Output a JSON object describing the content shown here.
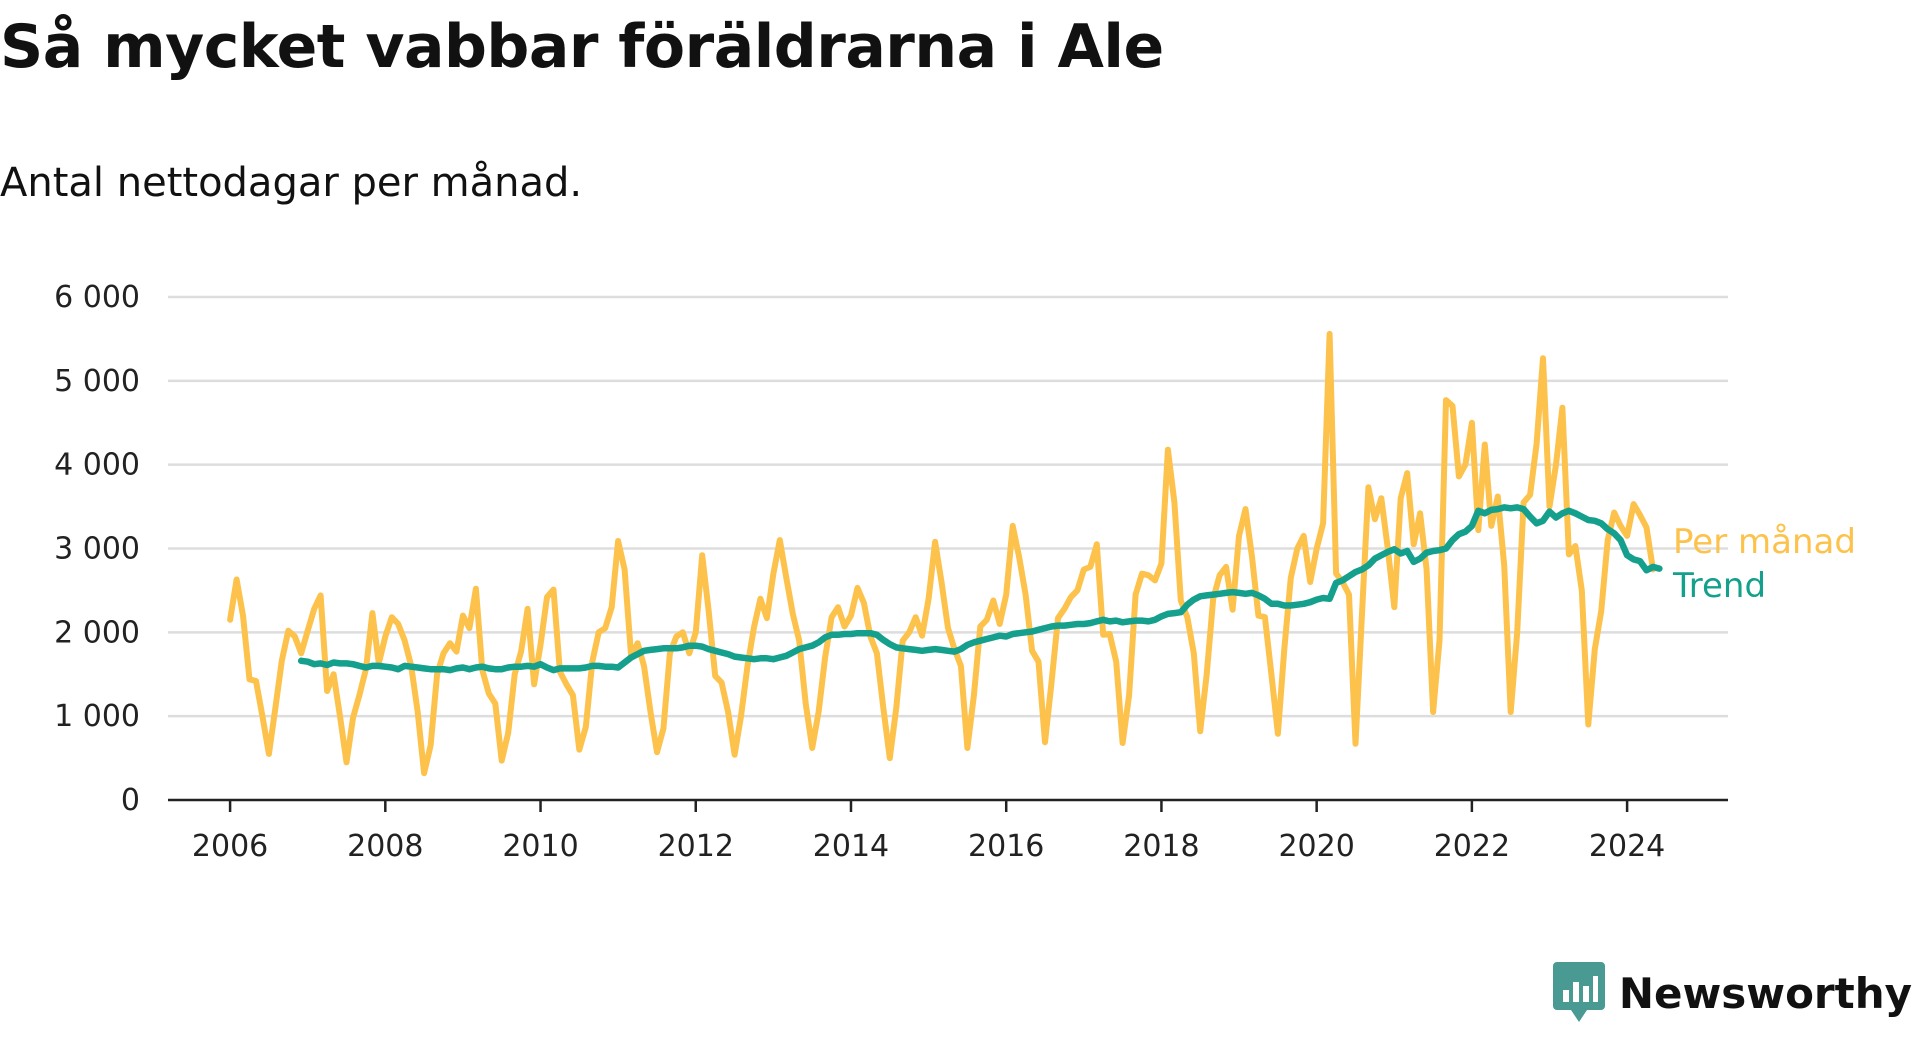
{
  "header": {
    "title": "Så mycket vabbar föräldrarna i Ale",
    "subtitle": "Antal nettodagar per månad."
  },
  "brand": {
    "name": "Newsworthy",
    "icon": "newsworthy-logo-icon",
    "color": "#4a9a94"
  },
  "colors": {
    "per_month": "#fcc24c",
    "trend": "#14a08c",
    "grid": "#dddddd",
    "axis": "#222222"
  },
  "chart_data": {
    "type": "line",
    "title": "Så mycket vabbar föräldrarna i Ale",
    "subtitle": "Antal nettodagar per månad.",
    "xlabel": "",
    "ylabel": "",
    "ylim": [
      0,
      6000
    ],
    "xlim": [
      2005.2,
      2025.3
    ],
    "x_ticks": [
      2006,
      2008,
      2010,
      2012,
      2014,
      2016,
      2018,
      2020,
      2022,
      2024
    ],
    "x_tick_labels": [
      "2006",
      "2008",
      "2010",
      "2012",
      "2014",
      "2016",
      "2018",
      "2020",
      "2022",
      "2024"
    ],
    "y_ticks": [
      0,
      1000,
      2000,
      3000,
      4000,
      5000,
      6000
    ],
    "y_tick_labels": [
      "0",
      "1 000",
      "2 000",
      "3 000",
      "4 000",
      "5 000",
      "6 000"
    ],
    "grid": true,
    "legend": "inline-right",
    "series": [
      {
        "name": "Per månad",
        "start": "2006-01",
        "frequency": "monthly",
        "values": [
          2150,
          2630,
          2200,
          1440,
          1420,
          1000,
          550,
          1100,
          1660,
          2020,
          1950,
          1750,
          2020,
          2280,
          2440,
          1300,
          1500,
          1000,
          450,
          980,
          1250,
          1560,
          2230,
          1630,
          1950,
          2180,
          2100,
          1900,
          1600,
          1050,
          320,
          650,
          1500,
          1750,
          1870,
          1770,
          2200,
          2050,
          2520,
          1550,
          1270,
          1150,
          470,
          800,
          1500,
          1770,
          2280,
          1380,
          1850,
          2420,
          2510,
          1530,
          1380,
          1250,
          600,
          870,
          1650,
          2000,
          2050,
          2300,
          3090,
          2750,
          1720,
          1870,
          1600,
          1050,
          570,
          850,
          1750,
          1950,
          2000,
          1750,
          2000,
          2920,
          2250,
          1480,
          1400,
          1050,
          540,
          1000,
          1600,
          2060,
          2400,
          2170,
          2700,
          3100,
          2650,
          2220,
          1900,
          1150,
          620,
          1050,
          1700,
          2180,
          2300,
          2070,
          2200,
          2530,
          2350,
          1950,
          1750,
          1100,
          500,
          1100,
          1900,
          2000,
          2180,
          1960,
          2400,
          3080,
          2600,
          2050,
          1800,
          1600,
          620,
          1250,
          2070,
          2150,
          2380,
          2100,
          2450,
          3270,
          2900,
          2450,
          1780,
          1650,
          690,
          1400,
          2170,
          2280,
          2420,
          2500,
          2750,
          2780,
          3050,
          1970,
          1980,
          1650,
          680,
          1250,
          2450,
          2700,
          2680,
          2620,
          2820,
          4180,
          3550,
          2380,
          2180,
          1750,
          820,
          1500,
          2400,
          2680,
          2780,
          2270,
          3150,
          3470,
          2900,
          2200,
          2180,
          1500,
          790,
          1800,
          2650,
          3000,
          3150,
          2600,
          3000,
          3300,
          5560,
          2700,
          2600,
          2450,
          670,
          2200,
          3730,
          3350,
          3600,
          3000,
          2300,
          3600,
          3900,
          3050,
          3420,
          2750,
          1050,
          1900,
          4770,
          4700,
          3860,
          4000,
          4500,
          3220,
          4240,
          3270,
          3620,
          2800,
          1050,
          2000,
          3550,
          3640,
          4250,
          5270,
          3500,
          4000,
          4680,
          2930,
          3030,
          2500,
          900,
          1800,
          2250,
          3100,
          3430,
          3270,
          3150,
          3530,
          3400,
          3250,
          2750
        ]
      },
      {
        "name": "Trend",
        "start": "2006-12",
        "frequency": "monthly",
        "values": [
          1660,
          1650,
          1620,
          1630,
          1610,
          1640,
          1630,
          1630,
          1620,
          1600,
          1580,
          1600,
          1600,
          1590,
          1580,
          1560,
          1600,
          1590,
          1580,
          1570,
          1560,
          1560,
          1560,
          1550,
          1570,
          1580,
          1560,
          1580,
          1590,
          1570,
          1560,
          1560,
          1580,
          1590,
          1590,
          1600,
          1590,
          1620,
          1580,
          1550,
          1570,
          1570,
          1570,
          1570,
          1580,
          1600,
          1600,
          1590,
          1590,
          1580,
          1640,
          1700,
          1740,
          1780,
          1790,
          1800,
          1810,
          1810,
          1810,
          1820,
          1840,
          1840,
          1830,
          1800,
          1780,
          1760,
          1740,
          1710,
          1700,
          1690,
          1680,
          1690,
          1690,
          1680,
          1700,
          1720,
          1760,
          1800,
          1820,
          1840,
          1880,
          1940,
          1970,
          1970,
          1980,
          1980,
          1990,
          1990,
          1990,
          1970,
          1910,
          1860,
          1820,
          1810,
          1800,
          1790,
          1780,
          1790,
          1800,
          1790,
          1780,
          1770,
          1800,
          1850,
          1880,
          1900,
          1920,
          1940,
          1960,
          1950,
          1980,
          1990,
          2000,
          2010,
          2030,
          2050,
          2070,
          2080,
          2080,
          2090,
          2100,
          2100,
          2110,
          2130,
          2150,
          2130,
          2140,
          2120,
          2130,
          2140,
          2140,
          2130,
          2150,
          2190,
          2220,
          2230,
          2240,
          2330,
          2390,
          2430,
          2440,
          2450,
          2460,
          2470,
          2480,
          2470,
          2460,
          2470,
          2440,
          2400,
          2340,
          2340,
          2320,
          2320,
          2330,
          2340,
          2360,
          2390,
          2410,
          2400,
          2590,
          2620,
          2670,
          2720,
          2750,
          2800,
          2880,
          2920,
          2960,
          2990,
          2940,
          2970,
          2840,
          2880,
          2950,
          2970,
          2980,
          3000,
          3100,
          3170,
          3200,
          3270,
          3450,
          3420,
          3460,
          3470,
          3490,
          3480,
          3490,
          3470,
          3380,
          3300,
          3330,
          3440,
          3370,
          3420,
          3450,
          3420,
          3380,
          3340,
          3330,
          3300,
          3230,
          3180,
          3100,
          2920,
          2870,
          2850,
          2740,
          2780,
          2760
        ]
      }
    ]
  }
}
